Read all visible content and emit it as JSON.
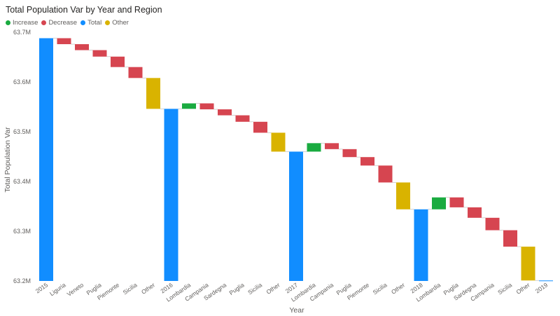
{
  "chart_data": {
    "type": "waterfall",
    "title": "Total Population Var by Year and Region",
    "xlabel": "Year",
    "ylabel": "Total Population Var",
    "ylim": [
      63.2,
      63.7
    ],
    "y_unit": "M",
    "yticks": [
      "63.2M",
      "63.3M",
      "63.4M",
      "63.5M",
      "63.6M",
      "63.7M"
    ],
    "grid": false,
    "legend_position": "top-left",
    "legend": [
      {
        "name": "Increase",
        "color": "#1aab40"
      },
      {
        "name": "Decrease",
        "color": "#d64550"
      },
      {
        "name": "Total",
        "color": "#118dff"
      },
      {
        "name": "Other",
        "color": "#d9b300"
      }
    ],
    "categories": [
      "2015",
      "Liguria",
      "Veneto",
      "Puglia",
      "Piemonte",
      "Sicilia",
      "Other",
      "2016",
      "Lombardia",
      "Campania",
      "Sardegna",
      "Puglia",
      "Sicilia",
      "Other",
      "2017",
      "Lombardia",
      "Campania",
      "Puglia",
      "Piemonte",
      "Sicilia",
      "Other",
      "2018",
      "Lombardia",
      "Puglia",
      "Sardegna",
      "Campania",
      "Sicilia",
      "Other",
      "2019"
    ],
    "bars": [
      {
        "kind": "Total",
        "start": 63.2,
        "end": 63.688
      },
      {
        "kind": "Decrease",
        "start": 63.688,
        "end": 63.676
      },
      {
        "kind": "Decrease",
        "start": 63.676,
        "end": 63.664
      },
      {
        "kind": "Decrease",
        "start": 63.664,
        "end": 63.651
      },
      {
        "kind": "Decrease",
        "start": 63.651,
        "end": 63.63
      },
      {
        "kind": "Decrease",
        "start": 63.63,
        "end": 63.608
      },
      {
        "kind": "Other",
        "start": 63.608,
        "end": 63.546
      },
      {
        "kind": "Total",
        "start": 63.2,
        "end": 63.546
      },
      {
        "kind": "Increase",
        "start": 63.546,
        "end": 63.557
      },
      {
        "kind": "Decrease",
        "start": 63.557,
        "end": 63.545
      },
      {
        "kind": "Decrease",
        "start": 63.545,
        "end": 63.533
      },
      {
        "kind": "Decrease",
        "start": 63.533,
        "end": 63.52
      },
      {
        "kind": "Decrease",
        "start": 63.52,
        "end": 63.498
      },
      {
        "kind": "Other",
        "start": 63.498,
        "end": 63.46
      },
      {
        "kind": "Total",
        "start": 63.2,
        "end": 63.46
      },
      {
        "kind": "Increase",
        "start": 63.46,
        "end": 63.477
      },
      {
        "kind": "Decrease",
        "start": 63.477,
        "end": 63.465
      },
      {
        "kind": "Decrease",
        "start": 63.465,
        "end": 63.449
      },
      {
        "kind": "Decrease",
        "start": 63.449,
        "end": 63.432
      },
      {
        "kind": "Decrease",
        "start": 63.432,
        "end": 63.398
      },
      {
        "kind": "Other",
        "start": 63.398,
        "end": 63.344
      },
      {
        "kind": "Total",
        "start": 63.2,
        "end": 63.344
      },
      {
        "kind": "Increase",
        "start": 63.344,
        "end": 63.368
      },
      {
        "kind": "Decrease",
        "start": 63.368,
        "end": 63.348
      },
      {
        "kind": "Decrease",
        "start": 63.348,
        "end": 63.327
      },
      {
        "kind": "Decrease",
        "start": 63.327,
        "end": 63.302
      },
      {
        "kind": "Decrease",
        "start": 63.302,
        "end": 63.269
      },
      {
        "kind": "Other",
        "start": 63.269,
        "end": 63.201
      },
      {
        "kind": "Total",
        "start": 63.2,
        "end": 63.201
      }
    ]
  }
}
